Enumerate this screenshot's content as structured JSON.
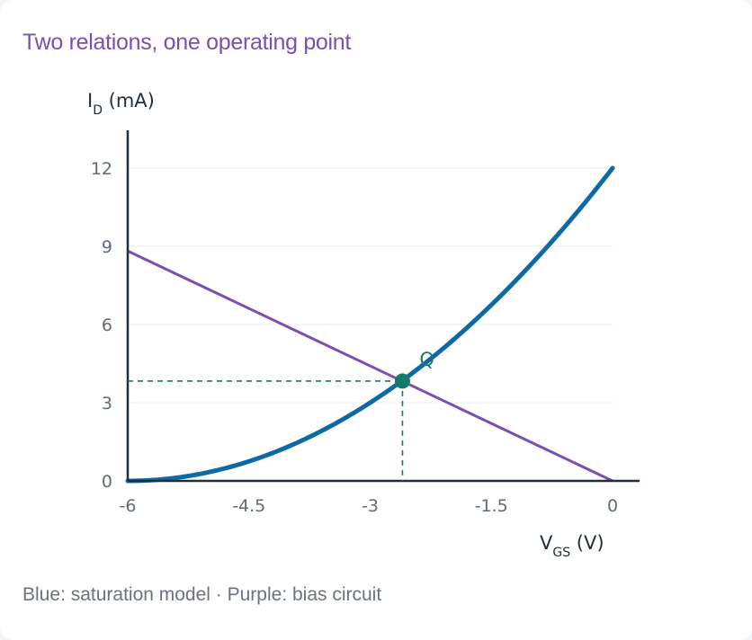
{
  "title": "Two relations, one operating point",
  "caption": "Blue: saturation model · Purple: bias circuit",
  "colors": {
    "title": "#7b4fb0",
    "saturation": "#0e6aa3",
    "bias": "#7b4fb0",
    "operating_point": "#157a6e",
    "axis": "#1f2d3d",
    "grid": "#e8ebef"
  },
  "chart_data": {
    "type": "line",
    "xlabel": {
      "main": "V",
      "sub": "GS",
      "unit": " (V)"
    },
    "ylabel": {
      "main": "I",
      "sub": "D",
      "unit": " (mA)"
    },
    "xlim": [
      -6,
      0
    ],
    "ylim": [
      0,
      12
    ],
    "x_ticks": [
      -6,
      -4.5,
      -3,
      -1.5,
      0
    ],
    "x_tick_labels": [
      "-6",
      "-4.5",
      "-3",
      "-1.5",
      "0"
    ],
    "y_ticks": [
      0,
      3,
      6,
      9,
      12
    ],
    "y_tick_labels": [
      "0",
      "3",
      "6",
      "9",
      "12"
    ],
    "grid": "horizontal",
    "series": [
      {
        "key": "saturation",
        "description_shown": "Blue: saturation model",
        "model": {
          "Idss": 12,
          "Vp": -6
        },
        "x": [
          -6,
          -5.5,
          -5,
          -4.5,
          -4,
          -3.5,
          -3,
          -2.5,
          -2,
          -1.5,
          -1,
          -0.5,
          0
        ],
        "y": [
          0,
          0.08,
          0.33,
          0.75,
          1.33,
          2.08,
          3.0,
          4.08,
          5.33,
          6.75,
          8.33,
          10.08,
          12.0
        ]
      },
      {
        "key": "bias",
        "description_shown": "Purple: bias circuit",
        "x": [
          -6,
          0
        ],
        "y": [
          8.82,
          0
        ]
      }
    ],
    "operating_point": {
      "label": "Q",
      "x": -2.6,
      "y": 3.83
    }
  }
}
